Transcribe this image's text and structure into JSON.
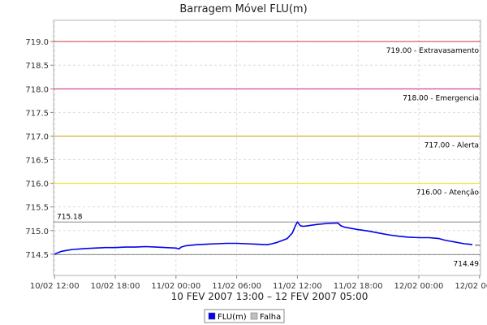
{
  "chart_data": {
    "type": "line",
    "title": "Barragem Móvel FLU(m)",
    "subtitle": "10 FEV 2007 13:00 – 12 FEV 2007 05:00",
    "ylim": [
      714.05,
      719.45
    ],
    "yticks": [
      "714.5",
      "715.0",
      "715.5",
      "716.0",
      "716.5",
      "717.0",
      "717.5",
      "718.0",
      "718.5",
      "719.0"
    ],
    "xlim_hours": [
      -0.1,
      42.1
    ],
    "xticks": [
      {
        "label": "10/02 12:00",
        "h": 0
      },
      {
        "label": "10/02 18:00",
        "h": 6
      },
      {
        "label": "11/02 00:00",
        "h": 12
      },
      {
        "label": "11/02 06:00",
        "h": 18
      },
      {
        "label": "11/02 12:00",
        "h": 24
      },
      {
        "label": "11/02 18:00",
        "h": 30
      },
      {
        "label": "12/02 00:00",
        "h": 36
      },
      {
        "label": "12/02 06:00",
        "h": 42
      }
    ],
    "thresholds": [
      {
        "value": 719.0,
        "label": "719.00 - Extravasamento",
        "color": "#d04040"
      },
      {
        "value": 718.0,
        "label": "718.00 - Emergencia",
        "color": "#d0207a"
      },
      {
        "value": 717.0,
        "label": "717.00 - Alerta",
        "color": "#c8a000"
      },
      {
        "value": 716.0,
        "label": "716.00 - Atenção",
        "color": "#e8e000"
      }
    ],
    "ref_lines": [
      {
        "value": 715.18,
        "label": "715.18",
        "color": "#888888"
      },
      {
        "value": 714.49,
        "label": "714.49",
        "color": "#888888"
      }
    ],
    "series": [
      {
        "name": "FLU(m)",
        "color": "#0000ee",
        "points": [
          [
            0.0,
            714.5
          ],
          [
            0.3,
            714.53
          ],
          [
            0.7,
            714.56
          ],
          [
            1.2,
            714.58
          ],
          [
            1.8,
            714.6
          ],
          [
            2.5,
            714.61
          ],
          [
            3.0,
            714.62
          ],
          [
            4.0,
            714.63
          ],
          [
            5.0,
            714.64
          ],
          [
            6.0,
            714.64
          ],
          [
            7.0,
            714.65
          ],
          [
            8.0,
            714.65
          ],
          [
            9.0,
            714.66
          ],
          [
            10.0,
            714.65
          ],
          [
            11.0,
            714.64
          ],
          [
            12.0,
            714.63
          ],
          [
            12.3,
            714.61
          ],
          [
            12.5,
            714.65
          ],
          [
            13.0,
            714.68
          ],
          [
            14.0,
            714.7
          ],
          [
            15.0,
            714.71
          ],
          [
            16.0,
            714.72
          ],
          [
            17.0,
            714.73
          ],
          [
            18.0,
            714.73
          ],
          [
            19.0,
            714.72
          ],
          [
            20.0,
            714.71
          ],
          [
            21.0,
            714.7
          ],
          [
            21.5,
            714.72
          ],
          [
            22.0,
            714.75
          ],
          [
            22.5,
            714.79
          ],
          [
            23.0,
            714.83
          ],
          [
            23.5,
            714.95
          ],
          [
            23.8,
            715.1
          ],
          [
            24.0,
            715.18
          ],
          [
            24.3,
            715.1
          ],
          [
            24.6,
            715.09
          ],
          [
            25.0,
            715.1
          ],
          [
            26.0,
            715.13
          ],
          [
            27.0,
            715.15
          ],
          [
            28.0,
            715.16
          ],
          [
            28.3,
            715.1
          ],
          [
            28.7,
            715.07
          ],
          [
            29.5,
            715.04
          ],
          [
            30.0,
            715.02
          ],
          [
            31.0,
            714.99
          ],
          [
            32.0,
            714.95
          ],
          [
            33.0,
            714.91
          ],
          [
            34.0,
            714.88
          ],
          [
            35.0,
            714.86
          ],
          [
            36.0,
            714.85
          ],
          [
            37.0,
            714.85
          ],
          [
            38.0,
            714.83
          ],
          [
            38.5,
            714.8
          ],
          [
            39.0,
            714.78
          ],
          [
            39.5,
            714.76
          ],
          [
            40.0,
            714.74
          ],
          [
            40.5,
            714.72
          ],
          [
            41.0,
            714.71
          ],
          [
            41.3,
            714.7
          ]
        ]
      }
    ],
    "falha_points": [
      [
        41.8,
        714.69
      ]
    ],
    "legend": [
      {
        "name": "FLU(m)",
        "color": "#0000ee"
      },
      {
        "name": "Falha",
        "color": "#c0c0c0"
      }
    ],
    "legend_position": "bottom",
    "grid": true
  }
}
